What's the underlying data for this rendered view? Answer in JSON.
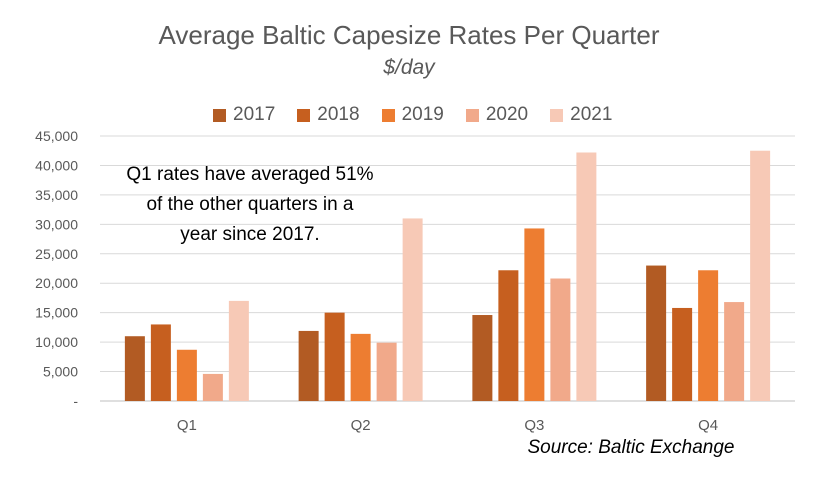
{
  "chart_data": {
    "type": "bar",
    "title": "Average Baltic Capesize Rates Per Quarter",
    "subtitle": "$/day",
    "categories": [
      "Q1",
      "Q2",
      "Q3",
      "Q4"
    ],
    "series": [
      {
        "name": "2017",
        "color": "#b25b23",
        "values": [
          11000,
          11900,
          14600,
          23000
        ]
      },
      {
        "name": "2018",
        "color": "#c65f1f",
        "values": [
          13000,
          15000,
          22200,
          15800
        ]
      },
      {
        "name": "2019",
        "color": "#ed7d31",
        "values": [
          8700,
          11400,
          29300,
          22200
        ]
      },
      {
        "name": "2020",
        "color": "#f1a98a",
        "values": [
          4600,
          9900,
          20800,
          16800
        ]
      },
      {
        "name": "2021",
        "color": "#f7c9b6",
        "values": [
          17000,
          31000,
          42200,
          42500
        ]
      }
    ],
    "ylim": [
      0,
      45000
    ],
    "yticks": [
      0,
      5000,
      10000,
      15000,
      20000,
      25000,
      30000,
      35000,
      40000,
      45000
    ],
    "ytick_labels": [
      "-",
      "5,000",
      "10,000",
      "15,000",
      "20,000",
      "25,000",
      "30,000",
      "35,000",
      "40,000",
      "45,000"
    ],
    "xlabel": "",
    "ylabel": "",
    "grid": true,
    "legend_position": "top",
    "annotation_lines": [
      "Q1 rates have averaged 51%",
      "of the other quarters in a",
      "year since 2017."
    ],
    "source": "Source: Baltic Exchange"
  }
}
